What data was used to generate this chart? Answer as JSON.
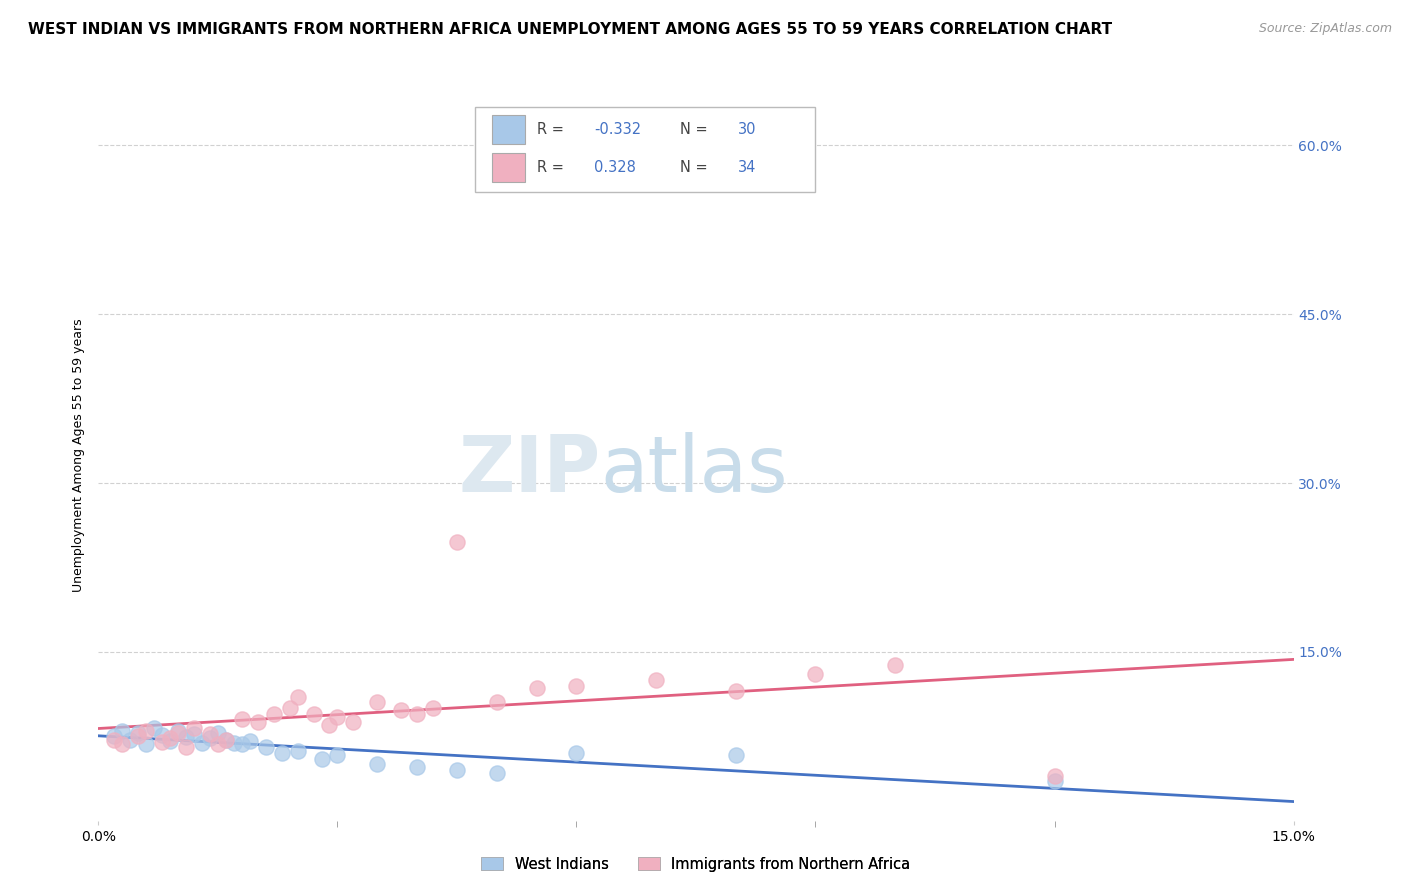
{
  "title": "WEST INDIAN VS IMMIGRANTS FROM NORTHERN AFRICA UNEMPLOYMENT AMONG AGES 55 TO 59 YEARS CORRELATION CHART",
  "source": "Source: ZipAtlas.com",
  "ylabel": "Unemployment Among Ages 55 to 59 years",
  "xlim": [
    0.0,
    0.15
  ],
  "ylim": [
    0.0,
    0.65
  ],
  "xtick_labels": [
    "0.0%",
    "15.0%"
  ],
  "xtick_positions": [
    0.0,
    0.15
  ],
  "ytick_labels": [
    "15.0%",
    "30.0%",
    "45.0%",
    "60.0%"
  ],
  "ytick_positions": [
    0.15,
    0.3,
    0.45,
    0.6
  ],
  "blue_color": "#a8c8e8",
  "pink_color": "#f0b0c0",
  "blue_line_color": "#4472c4",
  "pink_line_color": "#e06080",
  "right_tick_color": "#4472c4",
  "legend_label1": "West Indians",
  "legend_label2": "Immigrants from Northern Africa",
  "grid_color": "#cccccc",
  "background_color": "#ffffff",
  "title_fontsize": 11,
  "source_fontsize": 9,
  "axis_fontsize": 10,
  "west_indians_x": [
    0.002,
    0.003,
    0.004,
    0.005,
    0.006,
    0.007,
    0.008,
    0.009,
    0.01,
    0.011,
    0.012,
    0.013,
    0.014,
    0.015,
    0.016,
    0.017,
    0.018,
    0.019,
    0.021,
    0.023,
    0.025,
    0.028,
    0.03,
    0.035,
    0.04,
    0.045,
    0.05,
    0.06,
    0.08,
    0.12
  ],
  "west_indians_y": [
    0.075,
    0.08,
    0.072,
    0.078,
    0.068,
    0.082,
    0.076,
    0.071,
    0.08,
    0.074,
    0.077,
    0.069,
    0.073,
    0.078,
    0.072,
    0.069,
    0.068,
    0.071,
    0.065,
    0.06,
    0.062,
    0.055,
    0.058,
    0.05,
    0.048,
    0.045,
    0.042,
    0.06,
    0.058,
    0.035
  ],
  "north_africa_x": [
    0.002,
    0.003,
    0.005,
    0.006,
    0.008,
    0.009,
    0.01,
    0.011,
    0.012,
    0.014,
    0.015,
    0.016,
    0.018,
    0.02,
    0.022,
    0.024,
    0.025,
    0.027,
    0.029,
    0.03,
    0.032,
    0.035,
    0.038,
    0.04,
    0.042,
    0.045,
    0.05,
    0.055,
    0.06,
    0.07,
    0.08,
    0.09,
    0.1,
    0.12
  ],
  "north_africa_y": [
    0.072,
    0.068,
    0.075,
    0.08,
    0.07,
    0.073,
    0.078,
    0.065,
    0.082,
    0.077,
    0.068,
    0.072,
    0.09,
    0.088,
    0.095,
    0.1,
    0.11,
    0.095,
    0.085,
    0.092,
    0.088,
    0.105,
    0.098,
    0.095,
    0.1,
    0.248,
    0.105,
    0.118,
    0.12,
    0.125,
    0.115,
    0.13,
    0.138,
    0.04
  ]
}
